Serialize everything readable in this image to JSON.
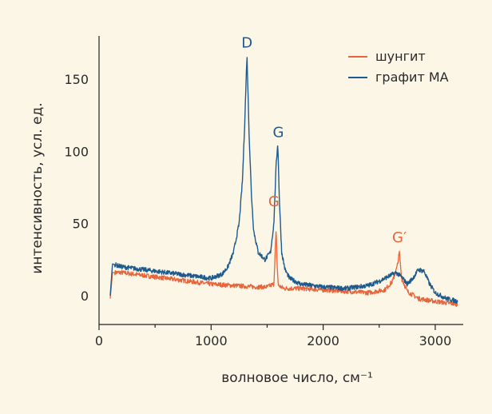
{
  "chart_data": {
    "type": "line",
    "xlabel": "волновое число, см⁻¹",
    "ylabel": "интенсивность, усл. ед.",
    "xlim": [
      0,
      3250
    ],
    "ylim": [
      -20,
      180
    ],
    "xticks": [
      "0",
      "1000",
      "2000",
      "3000"
    ],
    "yticks": [
      "0",
      "50",
      "100",
      "150"
    ],
    "grid": false,
    "legend_position": "top-right",
    "series": [
      {
        "name": "шунгит",
        "color": "#e8643a",
        "x": [
          100,
          120,
          200,
          400,
          600,
          800,
          1000,
          1200,
          1400,
          1500,
          1560,
          1580,
          1590,
          1600,
          1650,
          1800,
          2000,
          2200,
          2400,
          2550,
          2620,
          2660,
          2680,
          2700,
          2750,
          2850,
          3000,
          3200
        ],
        "values": [
          -2,
          16,
          16,
          14,
          12,
          10,
          8,
          7,
          6,
          6,
          8,
          45,
          20,
          7,
          5,
          5,
          4,
          3,
          2,
          4,
          10,
          20,
          30,
          12,
          3,
          -2,
          -4,
          -6
        ]
      },
      {
        "name": "графит МА",
        "color": "#1e5a8e",
        "x": [
          100,
          120,
          200,
          400,
          600,
          800,
          1000,
          1100,
          1150,
          1200,
          1250,
          1280,
          1300,
          1320,
          1340,
          1360,
          1380,
          1420,
          1480,
          1530,
          1560,
          1580,
          1595,
          1610,
          1630,
          1660,
          1700,
          1800,
          2000,
          2200,
          2400,
          2500,
          2600,
          2650,
          2700,
          2750,
          2800,
          2850,
          2900,
          2950,
          3000,
          3100,
          3200
        ],
        "values": [
          0,
          22,
          20,
          18,
          16,
          14,
          12,
          15,
          20,
          30,
          50,
          80,
          120,
          167,
          110,
          70,
          45,
          30,
          25,
          30,
          50,
          90,
          106,
          65,
          30,
          18,
          12,
          8,
          6,
          5,
          7,
          10,
          14,
          16,
          13,
          8,
          12,
          18,
          17,
          8,
          2,
          -2,
          -4
        ]
      }
    ],
    "annotations": [
      {
        "text": "D",
        "x": 1320,
        "y": 172,
        "color": "#1e5a8e"
      },
      {
        "text": "G",
        "x": 1600,
        "y": 110,
        "color": "#1e5a8e"
      },
      {
        "text": "G",
        "x": 1560,
        "y": 62,
        "color": "#e8643a"
      },
      {
        "text": "G′",
        "x": 2680,
        "y": 37,
        "color": "#e8643a"
      }
    ]
  }
}
